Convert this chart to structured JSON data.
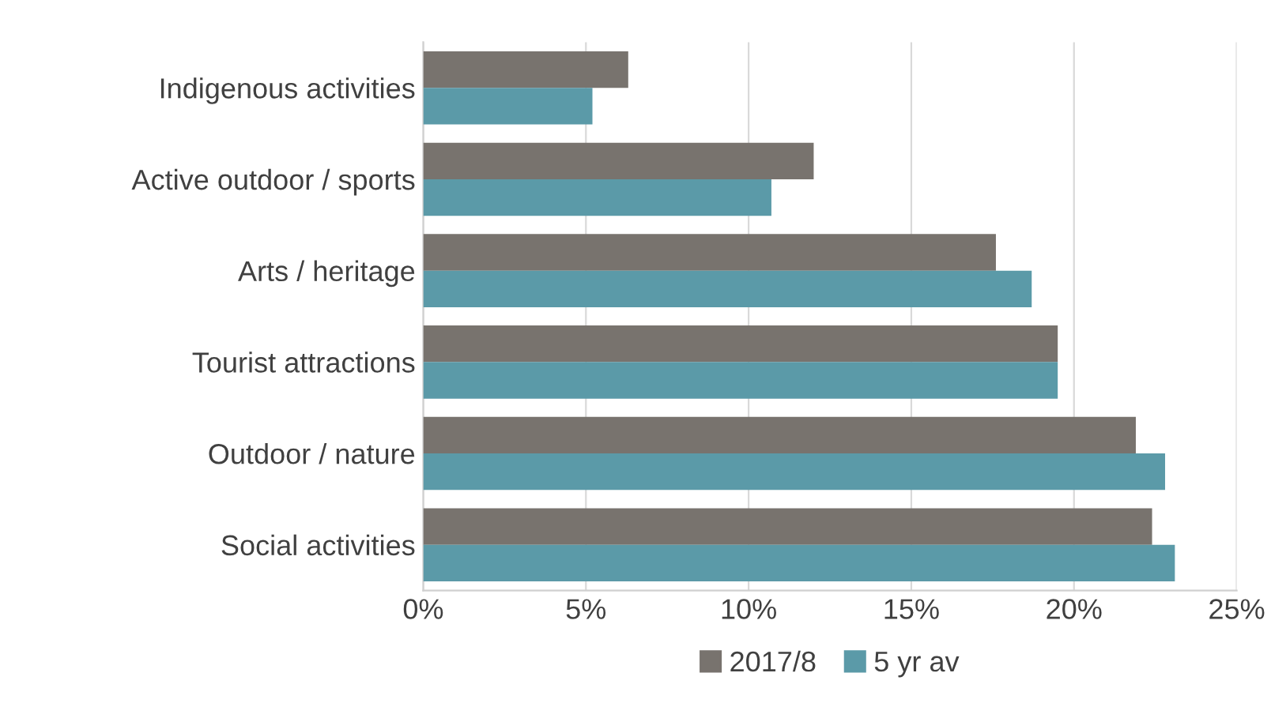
{
  "chart_data": {
    "type": "bar",
    "orientation": "horizontal",
    "categories": [
      "Indigenous activities",
      "Active outdoor / sports",
      "Arts / heritage",
      "Tourist attractions",
      "Outdoor / nature",
      "Social activities"
    ],
    "series": [
      {
        "name": "2017/8",
        "color": "#78736e",
        "values": [
          6.3,
          12.0,
          17.6,
          19.5,
          21.9,
          22.4
        ]
      },
      {
        "name": "5 yr av",
        "color": "#5b9aa8",
        "values": [
          5.2,
          10.7,
          18.7,
          19.5,
          22.8,
          23.1
        ]
      }
    ],
    "xlim": [
      0,
      25
    ],
    "xticks": [
      {
        "value": 0,
        "label": "0%"
      },
      {
        "value": 5,
        "label": "5%"
      },
      {
        "value": 10,
        "label": "10%"
      },
      {
        "value": 15,
        "label": "15%"
      },
      {
        "value": 20,
        "label": "20%"
      },
      {
        "value": 25,
        "label": "25%"
      }
    ],
    "grid": "x",
    "legend": "bottom"
  }
}
